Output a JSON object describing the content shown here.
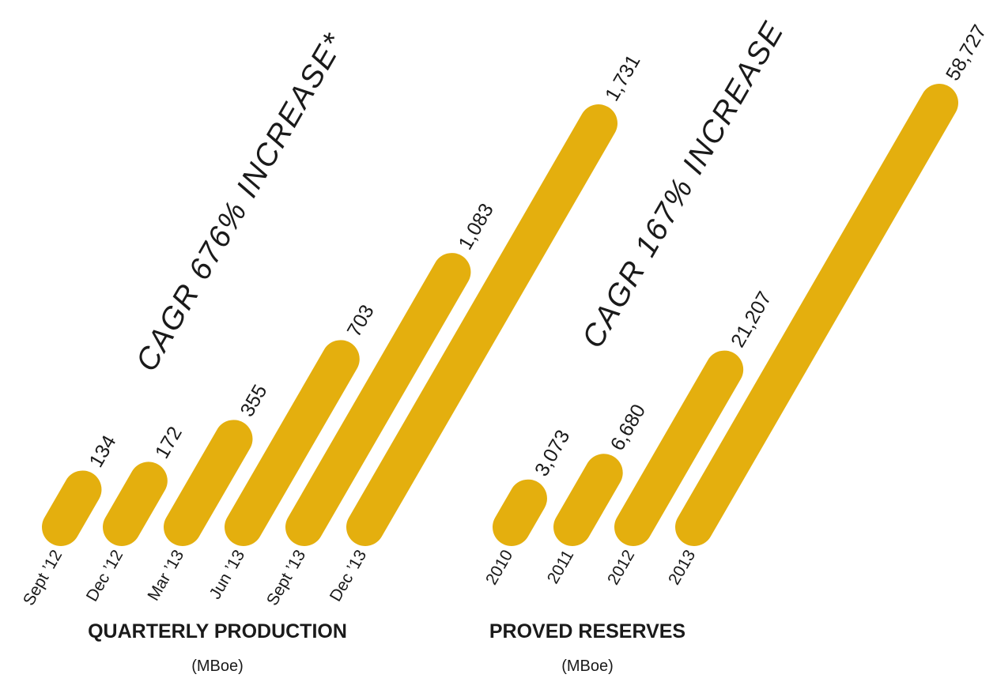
{
  "colors": {
    "bar": "#E4AF0E",
    "text": "#1a1a1a",
    "background": "#ffffff"
  },
  "chart_data": [
    {
      "type": "bar",
      "title": "QUARTERLY PRODUCTION",
      "subtitle": "(MBoe)",
      "annotation": "CAGR 676% INCREASE*",
      "categories": [
        "Sept ’12",
        "Dec ’12",
        "Mar ’13",
        "Jun ’13",
        "Sept ’13",
        "Dec ’13"
      ],
      "values": [
        134,
        172,
        355,
        703,
        1083,
        1731
      ],
      "value_labels": [
        "134",
        "172",
        "355",
        "703",
        "1,083",
        "1,731"
      ]
    },
    {
      "type": "bar",
      "title": "PROVED RESERVES",
      "subtitle": "(MBoe)",
      "annotation": "CAGR 167% INCREASE",
      "categories": [
        "2010",
        "2011",
        "2012",
        "2013"
      ],
      "values": [
        3073,
        6680,
        21207,
        58727
      ],
      "value_labels": [
        "3,073",
        "6,680",
        "21,207",
        "58,727"
      ]
    }
  ]
}
